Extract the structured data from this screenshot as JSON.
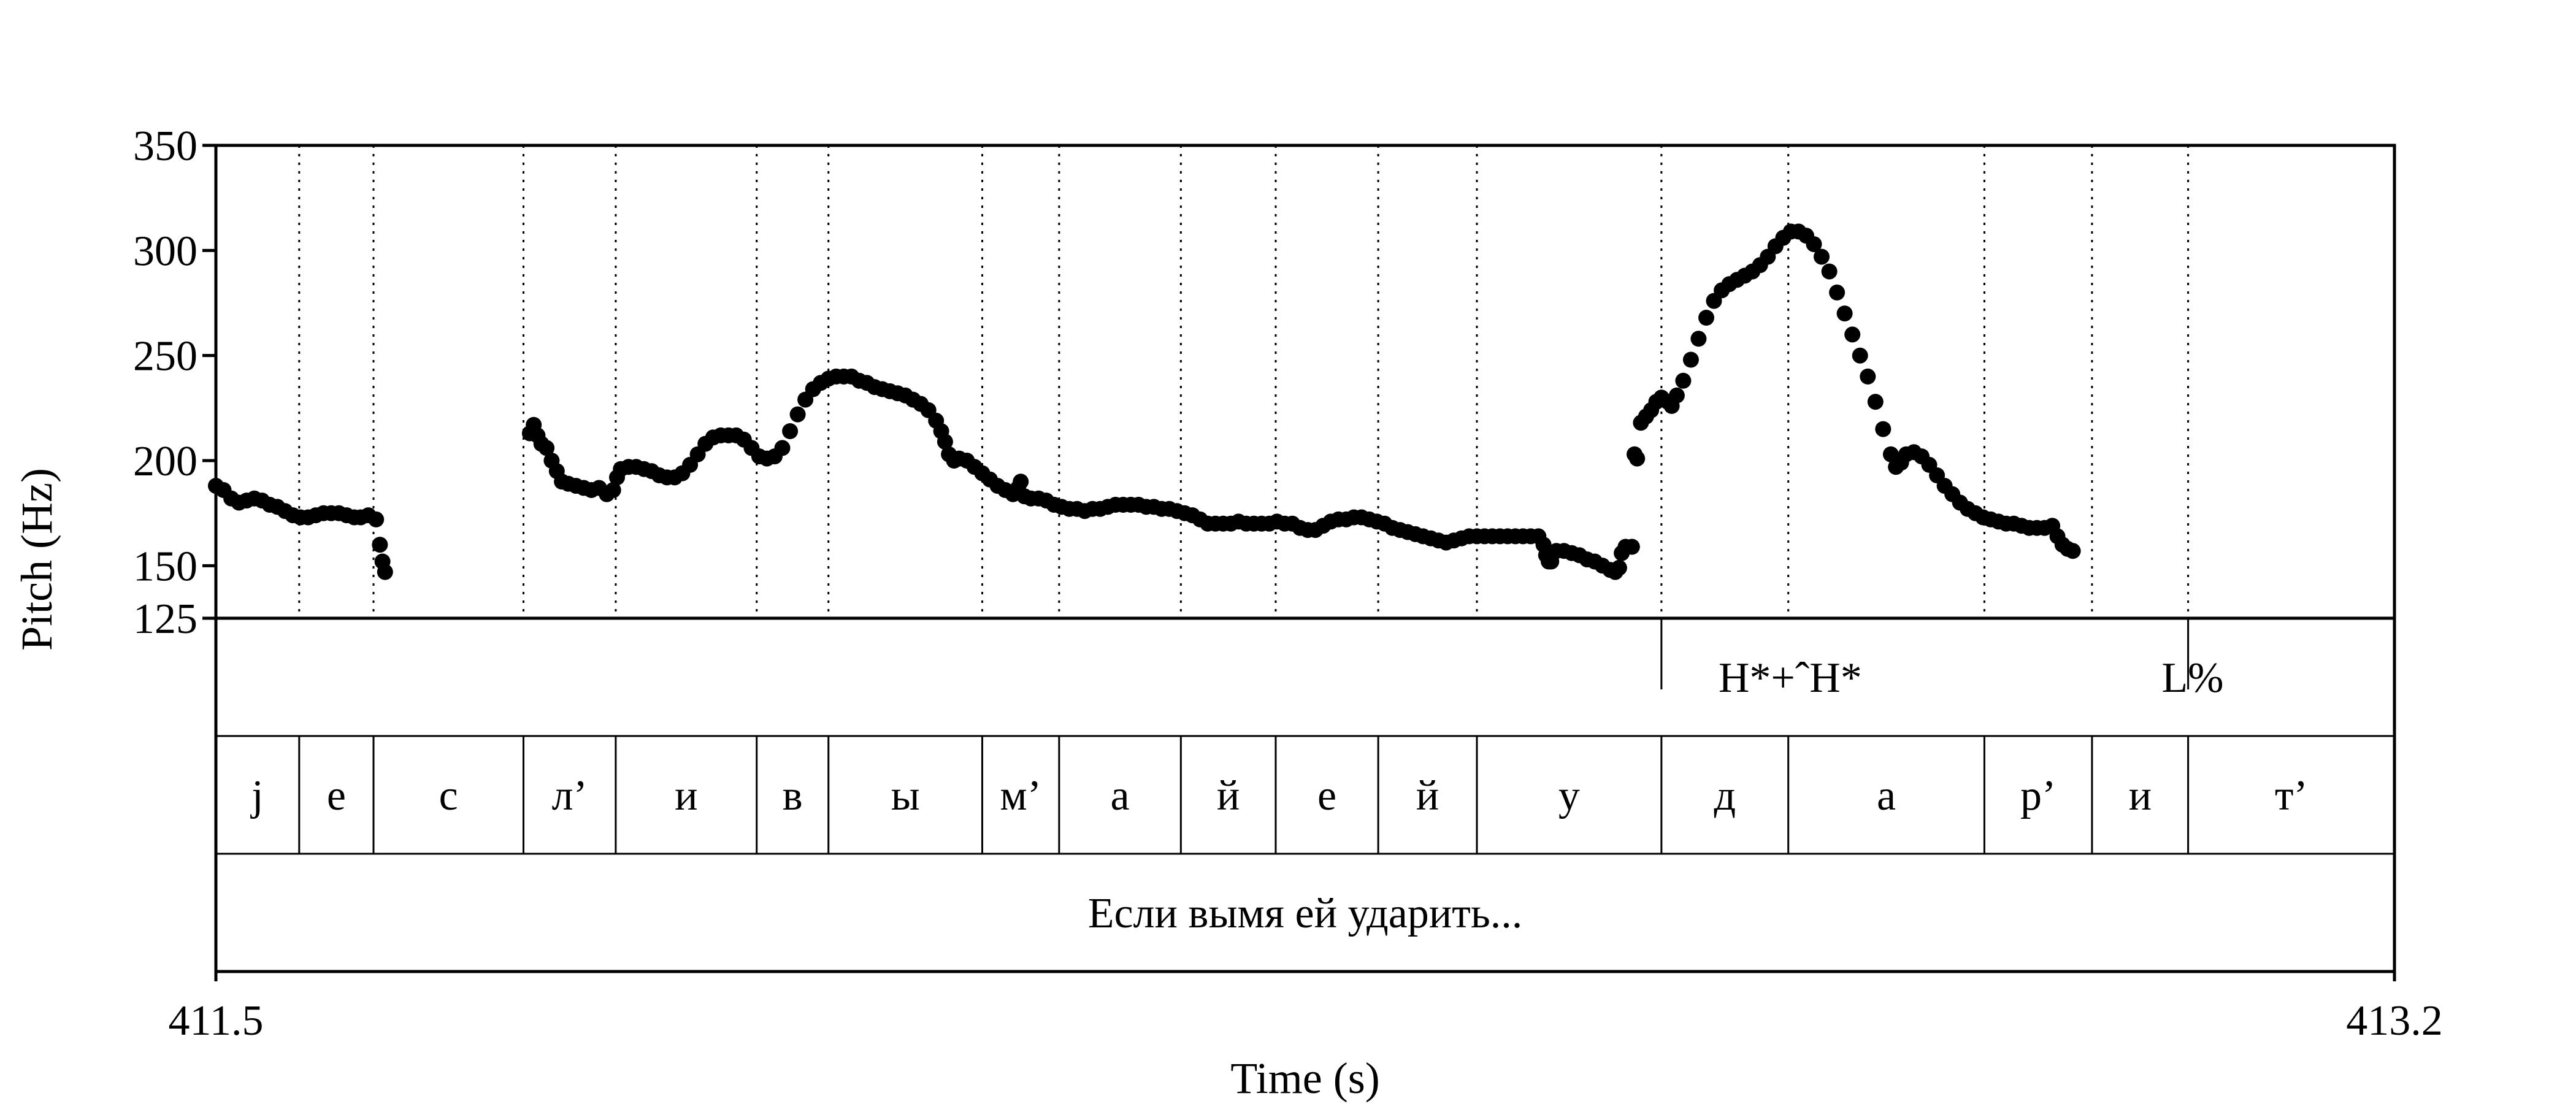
{
  "chart_data": {
    "type": "scatter",
    "title": "",
    "xlabel": "Time (s)",
    "ylabel": "Pitch (Hz)",
    "xlim": [
      411.5,
      413.2
    ],
    "ylim": [
      125,
      350
    ],
    "x_ticks": [
      "411.5",
      "413.2"
    ],
    "y_ticks": [
      {
        "value": 350,
        "label": "350"
      },
      {
        "value": 300,
        "label": "300"
      },
      {
        "value": 250,
        "label": "250"
      },
      {
        "value": 200,
        "label": "200"
      },
      {
        "value": 150,
        "label": "150"
      },
      {
        "value": 125,
        "label": "125"
      }
    ],
    "segment_boundaries": [
      411.565,
      411.623,
      411.74,
      411.812,
      411.922,
      411.978,
      412.098,
      412.158,
      412.253,
      412.327,
      412.407,
      412.484,
      412.628,
      412.727,
      412.88,
      412.964,
      413.039
    ],
    "tiers": [
      {
        "name": "tones",
        "labels": [
          {
            "text": "H*+ˆH*",
            "start": 412.622,
            "end": 412.835
          },
          {
            "text": "L%",
            "start": 412.995,
            "end": 413.09
          }
        ]
      },
      {
        "name": "segments",
        "labels": [
          {
            "text": "j",
            "start": 411.5,
            "end": 411.565
          },
          {
            "text": "е",
            "start": 411.565,
            "end": 411.623
          },
          {
            "text": "с",
            "start": 411.623,
            "end": 411.74
          },
          {
            "text": "л’",
            "start": 411.74,
            "end": 411.812
          },
          {
            "text": "и",
            "start": 411.812,
            "end": 411.922
          },
          {
            "text": "в",
            "start": 411.922,
            "end": 411.978
          },
          {
            "text": "ы",
            "start": 411.978,
            "end": 412.098
          },
          {
            "text": "м’",
            "start": 412.098,
            "end": 412.158
          },
          {
            "text": "а",
            "start": 412.158,
            "end": 412.253
          },
          {
            "text": "й",
            "start": 412.253,
            "end": 412.327
          },
          {
            "text": "е",
            "start": 412.327,
            "end": 412.407
          },
          {
            "text": "й",
            "start": 412.407,
            "end": 412.484
          },
          {
            "text": "у",
            "start": 412.484,
            "end": 412.628
          },
          {
            "text": "д",
            "start": 412.628,
            "end": 412.727
          },
          {
            "text": "а",
            "start": 412.727,
            "end": 412.88
          },
          {
            "text": "р’",
            "start": 412.88,
            "end": 412.964
          },
          {
            "text": "и",
            "start": 412.964,
            "end": 413.039
          },
          {
            "text": "т’",
            "start": 413.039,
            "end": 413.2
          }
        ]
      },
      {
        "name": "utterance",
        "labels": [
          {
            "text": "Если вымя ей ударить...",
            "start": 411.5,
            "end": 413.2
          }
        ]
      }
    ],
    "series": [
      {
        "points": [
          [
            411.5,
            188
          ],
          [
            411.506,
            186
          ],
          [
            411.512,
            182
          ],
          [
            411.518,
            180
          ],
          [
            411.524,
            181
          ],
          [
            411.53,
            182
          ],
          [
            411.536,
            181
          ],
          [
            411.542,
            179
          ],
          [
            411.548,
            178
          ],
          [
            411.554,
            176
          ],
          [
            411.56,
            174
          ],
          [
            411.566,
            173
          ],
          [
            411.572,
            173
          ],
          [
            411.578,
            174
          ],
          [
            411.584,
            175
          ],
          [
            411.59,
            175
          ],
          [
            411.596,
            175
          ],
          [
            411.602,
            174
          ],
          [
            411.608,
            173
          ],
          [
            411.613,
            173
          ],
          [
            411.619,
            174
          ],
          [
            411.625,
            172
          ],
          [
            411.628,
            160
          ],
          [
            411.63,
            152
          ],
          [
            411.632,
            147
          ],
          [
            411.745,
            213
          ],
          [
            411.748,
            217
          ],
          [
            411.751,
            212
          ],
          [
            411.754,
            208
          ],
          [
            411.758,
            206
          ],
          [
            411.762,
            200
          ],
          [
            411.766,
            195
          ],
          [
            411.77,
            190
          ],
          [
            411.775,
            189
          ],
          [
            411.781,
            188
          ],
          [
            411.787,
            187
          ],
          [
            411.793,
            186
          ],
          [
            411.799,
            187
          ],
          [
            411.805,
            184
          ],
          [
            411.81,
            186
          ],
          [
            411.813,
            192
          ],
          [
            411.816,
            196
          ],
          [
            411.822,
            197
          ],
          [
            411.828,
            197
          ],
          [
            411.834,
            196
          ],
          [
            411.84,
            195
          ],
          [
            411.846,
            193
          ],
          [
            411.852,
            192
          ],
          [
            411.858,
            192
          ],
          [
            411.864,
            194
          ],
          [
            411.87,
            198
          ],
          [
            411.876,
            203
          ],
          [
            411.882,
            208
          ],
          [
            411.888,
            211
          ],
          [
            411.894,
            212
          ],
          [
            411.9,
            212
          ],
          [
            411.906,
            212
          ],
          [
            411.912,
            210
          ],
          [
            411.918,
            206
          ],
          [
            411.924,
            202
          ],
          [
            411.93,
            201
          ],
          [
            411.936,
            202
          ],
          [
            411.942,
            206
          ],
          [
            411.948,
            214
          ],
          [
            411.954,
            222
          ],
          [
            411.96,
            229
          ],
          [
            411.966,
            234
          ],
          [
            411.972,
            237
          ],
          [
            411.978,
            239
          ],
          [
            411.984,
            240
          ],
          [
            411.99,
            240
          ],
          [
            411.996,
            240
          ],
          [
            412.002,
            238
          ],
          [
            412.008,
            237
          ],
          [
            412.014,
            235
          ],
          [
            412.02,
            234
          ],
          [
            412.026,
            233
          ],
          [
            412.032,
            232
          ],
          [
            412.038,
            231
          ],
          [
            412.044,
            229
          ],
          [
            412.05,
            227
          ],
          [
            412.056,
            224
          ],
          [
            412.062,
            219
          ],
          [
            412.066,
            214
          ],
          [
            412.069,
            209
          ],
          [
            412.072,
            203
          ],
          [
            412.076,
            200
          ],
          [
            412.08,
            201
          ],
          [
            412.086,
            200
          ],
          [
            412.092,
            197
          ],
          [
            412.098,
            194
          ],
          [
            412.104,
            191
          ],
          [
            412.11,
            188
          ],
          [
            412.116,
            186
          ],
          [
            412.122,
            184
          ],
          [
            412.126,
            187
          ],
          [
            412.128,
            190
          ],
          [
            412.131,
            183
          ],
          [
            412.136,
            182
          ],
          [
            412.142,
            182
          ],
          [
            412.148,
            181
          ],
          [
            412.154,
            179
          ],
          [
            412.16,
            178
          ],
          [
            412.166,
            177
          ],
          [
            412.172,
            177
          ],
          [
            412.178,
            176
          ],
          [
            412.184,
            177
          ],
          [
            412.19,
            177
          ],
          [
            412.196,
            178
          ],
          [
            412.202,
            179
          ],
          [
            412.208,
            179
          ],
          [
            412.214,
            179
          ],
          [
            412.22,
            179
          ],
          [
            412.226,
            178
          ],
          [
            412.232,
            178
          ],
          [
            412.238,
            177
          ],
          [
            412.244,
            177
          ],
          [
            412.25,
            176
          ],
          [
            412.256,
            175
          ],
          [
            412.262,
            174
          ],
          [
            412.268,
            172
          ],
          [
            412.274,
            170
          ],
          [
            412.28,
            170
          ],
          [
            412.286,
            170
          ],
          [
            412.292,
            170
          ],
          [
            412.298,
            171
          ],
          [
            412.304,
            170
          ],
          [
            412.31,
            170
          ],
          [
            412.316,
            170
          ],
          [
            412.322,
            170
          ],
          [
            412.328,
            171
          ],
          [
            412.334,
            170
          ],
          [
            412.34,
            170
          ],
          [
            412.346,
            168
          ],
          [
            412.352,
            167
          ],
          [
            412.358,
            167
          ],
          [
            412.364,
            169
          ],
          [
            412.37,
            171
          ],
          [
            412.376,
            172
          ],
          [
            412.382,
            172
          ],
          [
            412.388,
            173
          ],
          [
            412.394,
            173
          ],
          [
            412.4,
            172
          ],
          [
            412.406,
            171
          ],
          [
            412.412,
            170
          ],
          [
            412.418,
            168
          ],
          [
            412.424,
            167
          ],
          [
            412.43,
            166
          ],
          [
            412.436,
            165
          ],
          [
            412.442,
            164
          ],
          [
            412.448,
            163
          ],
          [
            412.454,
            162
          ],
          [
            412.46,
            161
          ],
          [
            412.466,
            162
          ],
          [
            412.472,
            163
          ],
          [
            412.478,
            164
          ],
          [
            412.484,
            164
          ],
          [
            412.49,
            164
          ],
          [
            412.496,
            164
          ],
          [
            412.502,
            164
          ],
          [
            412.508,
            164
          ],
          [
            412.514,
            164
          ],
          [
            412.52,
            164
          ],
          [
            412.526,
            164
          ],
          [
            412.532,
            164
          ],
          [
            412.536,
            160
          ],
          [
            412.538,
            155
          ],
          [
            412.54,
            152
          ],
          [
            412.542,
            152
          ],
          [
            412.546,
            157
          ],
          [
            412.552,
            157
          ],
          [
            412.558,
            156
          ],
          [
            412.564,
            155
          ],
          [
            412.57,
            153
          ],
          [
            412.576,
            152
          ],
          [
            412.582,
            150
          ],
          [
            412.588,
            148
          ],
          [
            412.592,
            147
          ],
          [
            412.595,
            149
          ],
          [
            412.597,
            156
          ],
          [
            412.6,
            159
          ],
          [
            412.605,
            159
          ],
          [
            412.607,
            203
          ],
          [
            412.609,
            201
          ],
          [
            412.612,
            218
          ],
          [
            412.616,
            221
          ],
          [
            412.62,
            224
          ],
          [
            412.624,
            228
          ],
          [
            412.628,
            230
          ],
          [
            412.633,
            228
          ],
          [
            412.636,
            226
          ],
          [
            412.64,
            231
          ],
          [
            412.645,
            238
          ],
          [
            412.651,
            248
          ],
          [
            412.657,
            258
          ],
          [
            412.663,
            268
          ],
          [
            412.669,
            276
          ],
          [
            412.675,
            281
          ],
          [
            412.681,
            284
          ],
          [
            412.687,
            286
          ],
          [
            412.693,
            288
          ],
          [
            412.699,
            290
          ],
          [
            412.705,
            293
          ],
          [
            412.711,
            297
          ],
          [
            412.717,
            302
          ],
          [
            412.723,
            306
          ],
          [
            412.729,
            309
          ],
          [
            412.735,
            309
          ],
          [
            412.741,
            307
          ],
          [
            412.747,
            303
          ],
          [
            412.753,
            297
          ],
          [
            412.759,
            290
          ],
          [
            412.765,
            280
          ],
          [
            412.771,
            270
          ],
          [
            412.777,
            260
          ],
          [
            412.783,
            250
          ],
          [
            412.789,
            240
          ],
          [
            412.795,
            228
          ],
          [
            412.801,
            215
          ],
          [
            412.807,
            203
          ],
          [
            412.811,
            197
          ],
          [
            412.815,
            199
          ],
          [
            412.819,
            203
          ],
          [
            412.825,
            204
          ],
          [
            412.831,
            202
          ],
          [
            412.837,
            198
          ],
          [
            412.843,
            193
          ],
          [
            412.849,
            188
          ],
          [
            412.855,
            184
          ],
          [
            412.861,
            180
          ],
          [
            412.867,
            177
          ],
          [
            412.873,
            175
          ],
          [
            412.879,
            173
          ],
          [
            412.885,
            172
          ],
          [
            412.891,
            171
          ],
          [
            412.897,
            170
          ],
          [
            412.903,
            170
          ],
          [
            412.909,
            169
          ],
          [
            412.915,
            168
          ],
          [
            412.921,
            168
          ],
          [
            412.927,
            168
          ],
          [
            412.933,
            169
          ],
          [
            412.937,
            164
          ],
          [
            412.941,
            160
          ],
          [
            412.945,
            158
          ],
          [
            412.949,
            157
          ]
        ]
      }
    ]
  }
}
